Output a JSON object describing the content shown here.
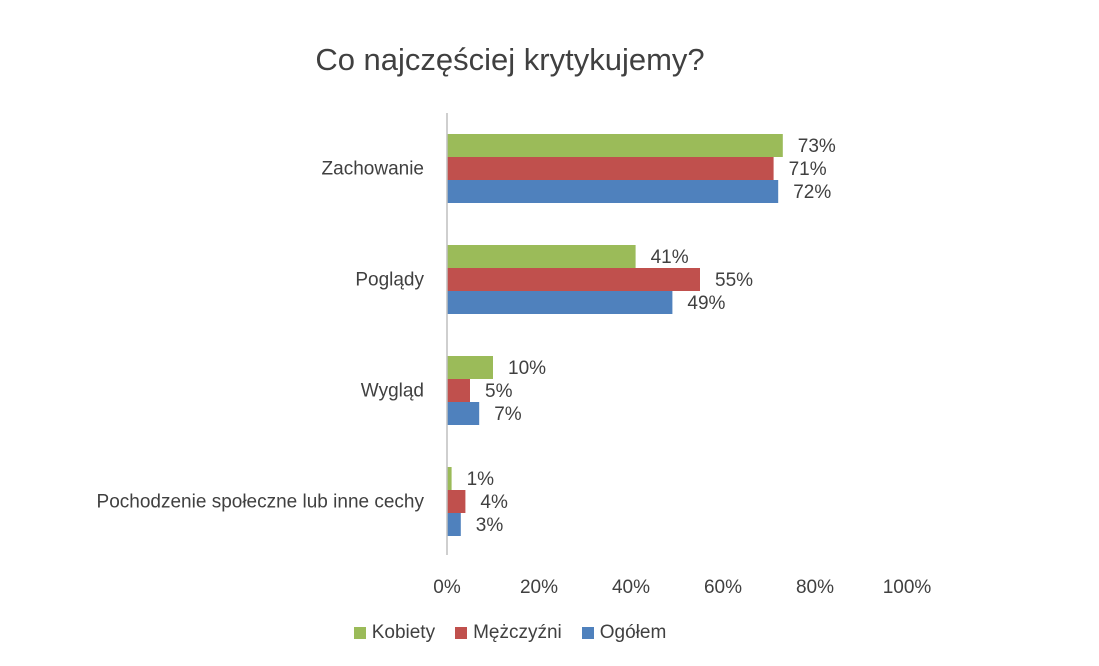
{
  "chart_data": {
    "type": "bar",
    "orientation": "horizontal",
    "title": "Co najczęściej krytykujemy?",
    "categories": [
      "Zachowanie",
      "Poglądy",
      "Wygląd",
      "Pochodzenie społeczne lub inne cechy"
    ],
    "series": [
      {
        "name": "Kobiety",
        "color": "#9BBB59",
        "values": [
          73,
          41,
          10,
          1
        ],
        "labels": [
          "73%",
          "41%",
          "10%",
          "1%"
        ]
      },
      {
        "name": "Mężczyźni",
        "color": "#C0504D",
        "values": [
          71,
          55,
          5,
          4
        ],
        "labels": [
          "71%",
          "55%",
          "5%",
          "4%"
        ]
      },
      {
        "name": "Ogółem",
        "color": "#4F81BD",
        "values": [
          72,
          49,
          7,
          3
        ],
        "labels": [
          "72%",
          "49%",
          "7%",
          "3%"
        ]
      }
    ],
    "xlim": [
      0,
      100
    ],
    "x_ticks": [
      0,
      20,
      40,
      60,
      80,
      100
    ],
    "x_tick_labels": [
      "0%",
      "20%",
      "40%",
      "60%",
      "80%",
      "100%"
    ],
    "grid": false,
    "legend_position": "bottom"
  }
}
